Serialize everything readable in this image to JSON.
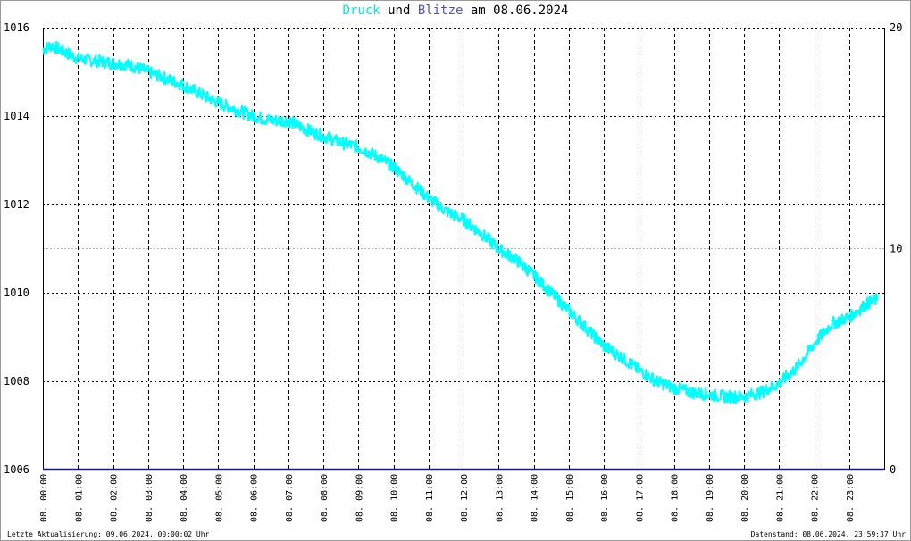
{
  "header": {
    "title_druck": "Druck",
    "title_und": " und ",
    "title_blitze": "Blitze",
    "title_rest": " am 08.06.2024"
  },
  "footer": {
    "left": "Letzte Aktualisierung: 09.06.2024, 00:00:02 Uhr",
    "right": "Datenstand: 08.06.2024, 23:59:37 Uhr"
  },
  "colors": {
    "druck": "#00ffff",
    "blitze": "#1a1a7a",
    "grid": "#000000",
    "minor_grid": "#bbbbbb"
  },
  "chart_data": {
    "type": "line",
    "title": "Druck und Blitze am 08.06.2024",
    "x_tick_labels": [
      "08. 00:00",
      "08. 01:00",
      "08. 02:00",
      "08. 03:00",
      "08. 04:00",
      "08. 05:00",
      "08. 06:00",
      "08. 07:00",
      "08. 08:00",
      "08. 09:00",
      "08. 10:00",
      "08. 11:00",
      "08. 12:00",
      "08. 13:00",
      "08. 14:00",
      "08. 15:00",
      "08. 16:00",
      "08. 17:00",
      "08. 18:00",
      "08. 19:00",
      "08. 20:00",
      "08. 21:00",
      "08. 22:00",
      "08. 23:00"
    ],
    "xlim_hours": [
      0,
      24
    ],
    "y_left": {
      "ticks": [
        "1006",
        "1008",
        "1010",
        "1012",
        "1014",
        "1016"
      ],
      "ylim": [
        1006,
        1016
      ]
    },
    "y_right": {
      "ticks": [
        "0",
        "10",
        "20"
      ],
      "ylim": [
        0,
        20
      ]
    },
    "grid": true,
    "series": [
      {
        "name": "Druck",
        "axis": "left",
        "color": "#00ffff",
        "x_hours": [
          0,
          0.25,
          0.5,
          1,
          1.5,
          2,
          2.5,
          3,
          3.5,
          4,
          4.5,
          5,
          5.5,
          6,
          6.5,
          7,
          7.5,
          8,
          8.5,
          9,
          9.5,
          10,
          10.5,
          11,
          11.5,
          12,
          12.5,
          13,
          13.5,
          14,
          14.5,
          15,
          15.5,
          16,
          16.5,
          17,
          17.5,
          18,
          18.5,
          19,
          19.5,
          20,
          20.5,
          21,
          21.5,
          22,
          22.5,
          23,
          23.5,
          23.8
        ],
        "values": [
          1015.5,
          1015.6,
          1015.5,
          1015.3,
          1015.25,
          1015.2,
          1015.15,
          1015.0,
          1014.85,
          1014.7,
          1014.5,
          1014.3,
          1014.15,
          1014.0,
          1013.9,
          1013.9,
          1013.7,
          1013.55,
          1013.4,
          1013.3,
          1013.1,
          1012.85,
          1012.5,
          1012.15,
          1011.85,
          1011.65,
          1011.35,
          1011.0,
          1010.75,
          1010.4,
          1010.0,
          1009.6,
          1009.2,
          1008.8,
          1008.55,
          1008.25,
          1008.0,
          1007.85,
          1007.75,
          1007.7,
          1007.65,
          1007.65,
          1007.75,
          1007.95,
          1008.3,
          1008.85,
          1009.3,
          1009.45,
          1009.75,
          1009.85
        ]
      },
      {
        "name": "Blitze",
        "axis": "right",
        "color": "#1a1a7a",
        "x_hours": [
          0,
          24
        ],
        "values": [
          0,
          0
        ]
      }
    ]
  }
}
